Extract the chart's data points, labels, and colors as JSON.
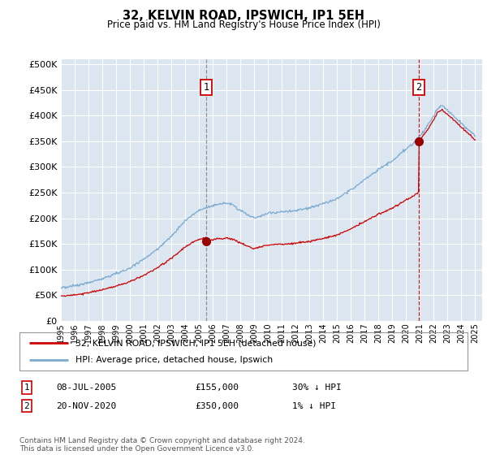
{
  "title": "32, KELVIN ROAD, IPSWICH, IP1 5EH",
  "subtitle": "Price paid vs. HM Land Registry's House Price Index (HPI)",
  "ytick_values": [
    0,
    50000,
    100000,
    150000,
    200000,
    250000,
    300000,
    350000,
    400000,
    450000,
    500000
  ],
  "ylim": [
    0,
    510000
  ],
  "xlim_start": 1995.0,
  "xlim_end": 2025.5,
  "hpi_color": "#7aaad0",
  "price_color": "#cc0000",
  "plot_bg_color": "#dce6f0",
  "fig_bg_color": "#ffffff",
  "marker1_x": 2005.52,
  "marker1_y": 155000,
  "marker1_label": "08-JUL-2005",
  "marker1_price": "£155,000",
  "marker1_hpi": "30% ↓ HPI",
  "marker2_x": 2020.9,
  "marker2_y": 350000,
  "marker2_label": "20-NOV-2020",
  "marker2_price": "£350,000",
  "marker2_hpi": "1% ↓ HPI",
  "legend_line1": "32, KELVIN ROAD, IPSWICH, IP1 5EH (detached house)",
  "legend_line2": "HPI: Average price, detached house, Ipswich",
  "footer": "Contains HM Land Registry data © Crown copyright and database right 2024.\nThis data is licensed under the Open Government Licence v3.0.",
  "xtick_years": [
    1995,
    1996,
    1997,
    1998,
    1999,
    2000,
    2001,
    2002,
    2003,
    2004,
    2005,
    2006,
    2007,
    2008,
    2009,
    2010,
    2011,
    2012,
    2013,
    2014,
    2015,
    2016,
    2017,
    2018,
    2019,
    2020,
    2021,
    2022,
    2023,
    2024,
    2025
  ]
}
